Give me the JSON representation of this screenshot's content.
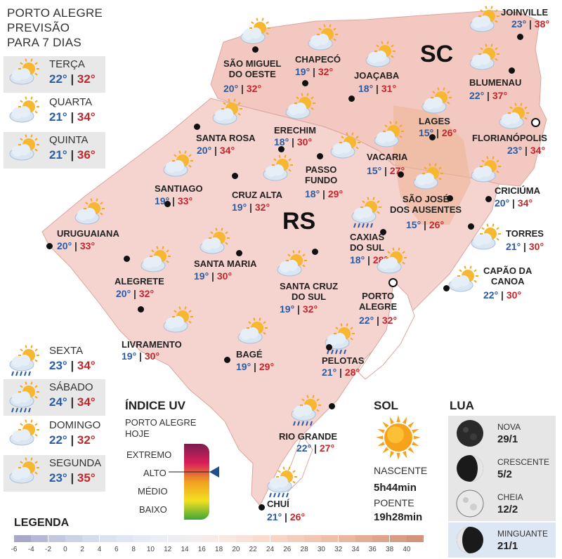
{
  "header": {
    "title_lines": [
      "PORTO ALEGRE",
      "PREVISÃO",
      "PARA 7 DIAS"
    ]
  },
  "forecast_days": [
    {
      "day": "TERÇA",
      "min": "22°",
      "max": "32°",
      "icon": "partly-cloudy-icon"
    },
    {
      "day": "QUARTA",
      "min": "21°",
      "max": "34°",
      "icon": "partly-cloudy-icon"
    },
    {
      "day": "QUINTA",
      "min": "21°",
      "max": "36°",
      "icon": "partly-cloudy-icon"
    },
    {
      "day": "SEXTA",
      "min": "23°",
      "max": "34°",
      "icon": "sun-rain-icon"
    },
    {
      "day": "SÁBADO",
      "min": "24°",
      "max": "34°",
      "icon": "sun-rain-icon"
    },
    {
      "day": "DOMINGO",
      "min": "22°",
      "max": "32°",
      "icon": "partly-cloudy-icon"
    },
    {
      "day": "SEGUNDA",
      "min": "23°",
      "max": "35°",
      "icon": "partly-cloudy-icon"
    }
  ],
  "map": {
    "state_labels": {
      "sc": "SC",
      "rs": "RS"
    },
    "cities": [
      {
        "name": "JOINVILLE",
        "min": "23°",
        "max": "38°",
        "icon": "partly-cloudy-icon"
      },
      {
        "name": "SÃO MIGUEL\nDO OESTE",
        "min": "20°",
        "max": "32°",
        "icon": "partly-cloudy-icon"
      },
      {
        "name": "CHAPECÓ",
        "min": "19°",
        "max": "32°",
        "icon": "partly-cloudy-icon"
      },
      {
        "name": "JOAÇABA",
        "min": "18°",
        "max": "31°",
        "icon": "partly-cloudy-icon"
      },
      {
        "name": "BLUMENAU",
        "min": "22°",
        "max": "37°",
        "icon": "partly-cloudy-icon"
      },
      {
        "name": "LAGES",
        "min": "15°",
        "max": "26°",
        "icon": "partly-cloudy-icon"
      },
      {
        "name": "FLORIANÓPOLIS",
        "min": "23°",
        "max": "34°",
        "icon": "partly-cloudy-icon"
      },
      {
        "name": "SANTA ROSA",
        "min": "20°",
        "max": "34°",
        "icon": "partly-cloudy-icon"
      },
      {
        "name": "ERECHIM",
        "min": "18°",
        "max": "30°",
        "icon": "partly-cloudy-icon"
      },
      {
        "name": "VACARIA",
        "min": "15°",
        "max": "27°",
        "icon": "partly-cloudy-icon"
      },
      {
        "name": "PASSO\nFUNDO",
        "min": "18°",
        "max": "29°",
        "icon": "partly-cloudy-icon"
      },
      {
        "name": "SANTIAGO",
        "min": "19°",
        "max": "33°",
        "icon": "partly-cloudy-icon"
      },
      {
        "name": "CRUZ ALTA",
        "min": "19°",
        "max": "32°",
        "icon": "partly-cloudy-icon"
      },
      {
        "name": "CRICIÚMA",
        "min": "20°",
        "max": "34°",
        "icon": "partly-cloudy-icon"
      },
      {
        "name": "SÃO JOSÉ\nDOS AUSENTES",
        "min": "15°",
        "max": "26°",
        "icon": "partly-cloudy-icon"
      },
      {
        "name": "URUGUAIANA",
        "min": "20°",
        "max": "33°",
        "icon": "partly-cloudy-icon"
      },
      {
        "name": "CAXIAS\nDO SUL",
        "min": "18°",
        "max": "28°",
        "icon": "sun-rain-icon"
      },
      {
        "name": "TORRES",
        "min": "21°",
        "max": "30°",
        "icon": "partly-cloudy-icon"
      },
      {
        "name": "SANTA MARIA",
        "min": "19°",
        "max": "30°",
        "icon": "partly-cloudy-icon"
      },
      {
        "name": "ALEGRETE",
        "min": "20°",
        "max": "32°",
        "icon": "partly-cloudy-icon"
      },
      {
        "name": "CAPÃO DA\nCANOA",
        "min": "22°",
        "max": "30°",
        "icon": "partly-cloudy-icon"
      },
      {
        "name": "SANTA CRUZ\nDO SUL",
        "min": "19°",
        "max": "32°",
        "icon": "partly-cloudy-icon"
      },
      {
        "name": "PORTO\nALEGRE",
        "min": "22°",
        "max": "32°",
        "icon": "partly-cloudy-icon"
      },
      {
        "name": "LIVRAMENTO",
        "min": "19°",
        "max": "30°",
        "icon": "partly-cloudy-icon"
      },
      {
        "name": "BAGÉ",
        "min": "19°",
        "max": "29°",
        "icon": "partly-cloudy-icon"
      },
      {
        "name": "PELOTAS",
        "min": "21°",
        "max": "28°",
        "icon": "sun-rain-icon"
      },
      {
        "name": "RIO GRANDE",
        "min": "22°",
        "max": "27°",
        "icon": "sun-rain-icon"
      },
      {
        "name": "CHUÍ",
        "min": "21°",
        "max": "26°",
        "icon": "sun-rain-icon"
      }
    ]
  },
  "uv": {
    "title": "ÍNDICE UV",
    "subtitle_lines": [
      "PORTO ALEGRE",
      "HOJE"
    ],
    "levels": [
      "EXTREMO",
      "ALTO",
      "MÉDIO",
      "BAIXO"
    ],
    "current_level": "ALTO",
    "colors": [
      "#7a1f4f",
      "#d81e5b",
      "#f0a020",
      "#f3e020",
      "#3ea637"
    ]
  },
  "sun": {
    "title": "SOL",
    "sunrise_label": "NASCENTE",
    "sunrise": "5h44min",
    "sunset_label": "POENTE",
    "sunset": "19h28min",
    "icon": "sun-icon"
  },
  "moon": {
    "title": "LUA",
    "phases": [
      {
        "name": "NOVA",
        "date": "29/1",
        "icon": "new-moon-icon"
      },
      {
        "name": "CRESCENTE",
        "date": "5/2",
        "icon": "waxing-moon-icon"
      },
      {
        "name": "CHEIA",
        "date": "12/2",
        "icon": "full-moon-icon"
      },
      {
        "name": "MINGUANTE",
        "date": "21/1",
        "icon": "waning-moon-icon",
        "highlight": true
      }
    ]
  },
  "legend": {
    "title": "LEGENDA",
    "ticks": [
      "-6",
      "-4",
      "-2",
      "0",
      "2",
      "4",
      "6",
      "8",
      "10",
      "12",
      "14",
      "16",
      "18",
      "20",
      "22",
      "24",
      "26",
      "28",
      "30",
      "32",
      "34",
      "36",
      "38",
      "40"
    ],
    "colors": [
      "#a9a8c9",
      "#b7b8d6",
      "#c3c8e0",
      "#ccd3e7",
      "#d4dced",
      "#dbe2f0",
      "#e1e7f2",
      "#e6ebf3",
      "#eaeef4",
      "#eeeef2",
      "#f2eeee",
      "#f5ece9",
      "#f7e8e2",
      "#f8e2da",
      "#f8dcd0",
      "#f7d5c6",
      "#f4cebd",
      "#f1c6b3",
      "#edbfaa",
      "#e9b6a0",
      "#e4ad96",
      "#dfa48d",
      "#d99c85",
      "#d3947d"
    ]
  }
}
